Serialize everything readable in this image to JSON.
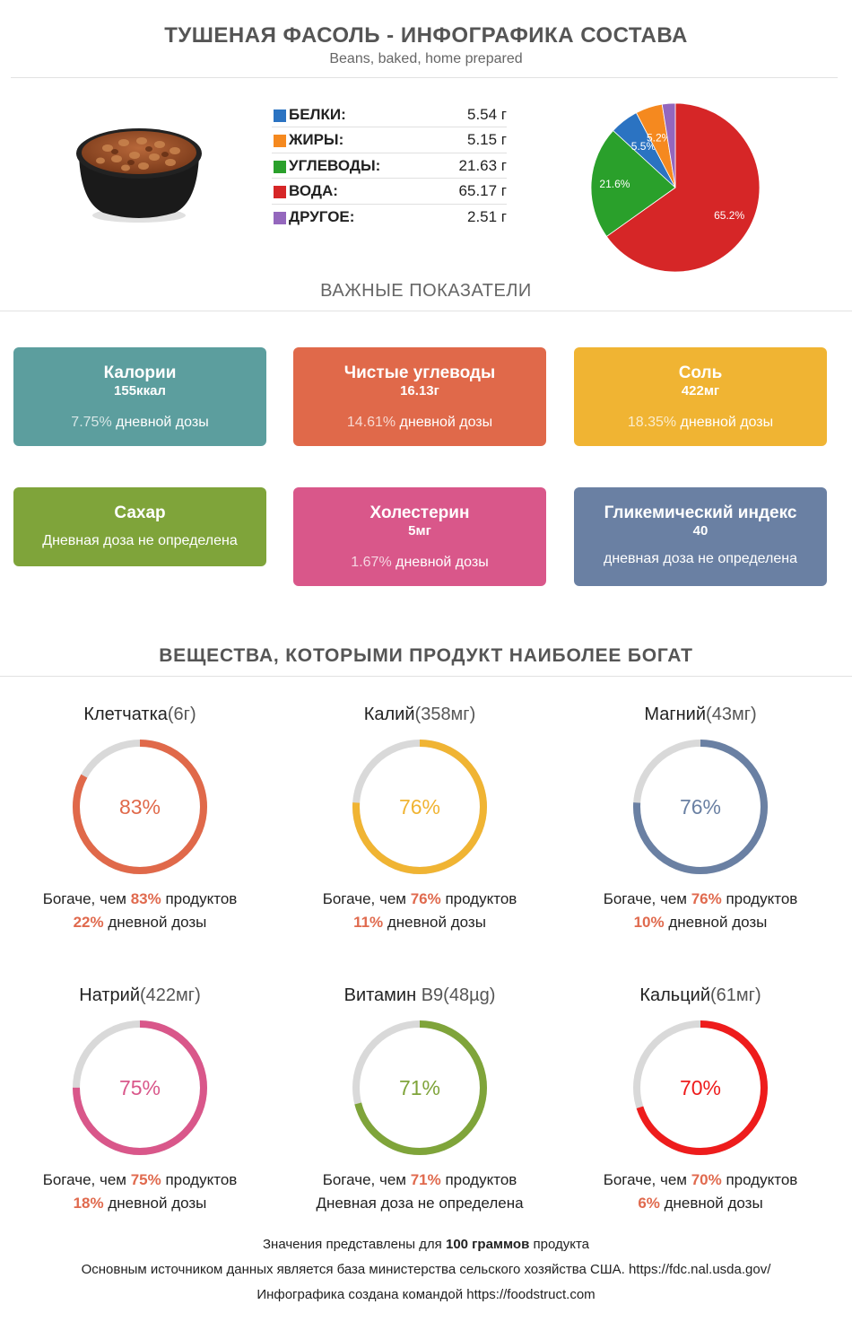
{
  "header": {
    "title": "ТУШЕНАЯ ФАСОЛЬ - ИНФОГРАФИКА СОСТАВА",
    "subtitle": "Beans, baked, home prepared"
  },
  "macros": [
    {
      "name": "БЕЛКИ:",
      "value": "5.54 г",
      "color": "#2b73c2"
    },
    {
      "name": "ЖИРЫ:",
      "value": "5.15 г",
      "color": "#f5891f"
    },
    {
      "name": "УГЛЕВОДЫ:",
      "value": "21.63 г",
      "color": "#2aa02b"
    },
    {
      "name": "ВОДА:",
      "value": "65.17 г",
      "color": "#d62627"
    },
    {
      "name": "ДРУГОЕ:",
      "value": "2.51 г",
      "color": "#9467bd"
    }
  ],
  "chart_data": {
    "type": "pie",
    "slices": [
      {
        "label": "65.2%",
        "value": 65.17,
        "color": "#d62627"
      },
      {
        "label": "21.6%",
        "value": 21.63,
        "color": "#2aa02b"
      },
      {
        "label": "5.5%",
        "value": 5.54,
        "color": "#2b73c2"
      },
      {
        "label": "5.2%",
        "value": 5.15,
        "color": "#f5891f"
      },
      {
        "label": "",
        "value": 2.51,
        "color": "#9467bd"
      }
    ]
  },
  "key_indicators": {
    "heading": "ВАЖНЫЕ ПОКАЗАТЕЛИ",
    "cards": [
      {
        "title": "Калории",
        "value": "155ккал",
        "pct": "7.75%",
        "dv": " дневной дозы",
        "color": "#5c9e9e"
      },
      {
        "title": "Чистые углеводы",
        "value": "16.13г",
        "pct": "14.61%",
        "dv": " дневной дозы",
        "color": "#e0694a"
      },
      {
        "title": "Соль",
        "value": "422мг",
        "pct": "18.35%",
        "dv": " дневной дозы",
        "color": "#f0b433"
      },
      {
        "title": "Сахар",
        "note": "Дневная доза не определена",
        "color": "#7fa43a"
      },
      {
        "title": "Холестерин",
        "value": "5мг",
        "pct": "1.67%",
        "dv": " дневной дозы",
        "color": "#d9578a"
      },
      {
        "title": "Гликемический индекс",
        "value": "40",
        "note": "дневная доза не определена",
        "color": "#6a80a3"
      }
    ]
  },
  "rich_in": {
    "heading": "ВЕЩЕСТВА, КОТОРЫМИ ПРОДУКТ НАИБОЛЕЕ БОГАТ",
    "items": [
      {
        "name": "Клетчатка",
        "amount": "(6г)",
        "percent": 83,
        "pct_label": "83%",
        "richer_prefix": "Богаче, чем ",
        "richer_pct": "83%",
        "richer_suffix": " продуктов",
        "dv_pct": "22%",
        "dv_suffix": " дневной дозы",
        "color": "#e0694a"
      },
      {
        "name": "Калий",
        "amount": "(358мг)",
        "percent": 76,
        "pct_label": "76%",
        "richer_prefix": "Богаче, чем ",
        "richer_pct": "76%",
        "richer_suffix": " продуктов",
        "dv_pct": "11%",
        "dv_suffix": " дневной дозы",
        "color": "#f0b433"
      },
      {
        "name": "Магний",
        "amount": "(43мг)",
        "percent": 76,
        "pct_label": "76%",
        "richer_prefix": "Богаче, чем ",
        "richer_pct": "76%",
        "richer_suffix": " продуктов",
        "dv_pct": "10%",
        "dv_suffix": " дневной дозы",
        "color": "#6a80a3"
      },
      {
        "name": "Натрий",
        "amount": "(422мг)",
        "percent": 75,
        "pct_label": "75%",
        "richer_prefix": "Богаче, чем ",
        "richer_pct": "75%",
        "richer_suffix": " продуктов",
        "dv_pct": "18%",
        "dv_suffix": " дневной дозы",
        "color": "#d9578a"
      },
      {
        "name": "Витамин ",
        "amount": "B9(48µg)",
        "percent": 71,
        "pct_label": "71%",
        "richer_prefix": "Богаче, чем ",
        "richer_pct": "71%",
        "richer_suffix": " продуктов",
        "dv_pct": "",
        "dv_suffix": "Дневная доза не определена",
        "color": "#7fa43a"
      },
      {
        "name": "Кальций",
        "amount": "(61мг)",
        "percent": 70,
        "pct_label": "70%",
        "richer_prefix": "Богаче, чем ",
        "richer_pct": "70%",
        "richer_suffix": " продуктов",
        "dv_pct": "6%",
        "dv_suffix": " дневной дозы",
        "color": "#ee1c1c"
      }
    ]
  },
  "footer": {
    "line1_prefix": "Значения представлены для ",
    "line1_bold": "100 граммов",
    "line1_suffix": " продукта",
    "line2": "Основным источником данных является база министерства сельского хозяйства США. https://fdc.nal.usda.gov/",
    "line3": "Инфографика создана командой https://foodstruct.com"
  }
}
